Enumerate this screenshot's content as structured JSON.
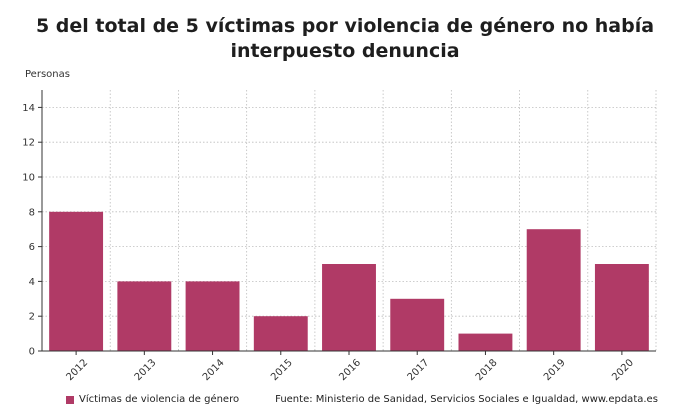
{
  "title_line1": "5 del total de 5 víctimas por violencia de género no había",
  "title_line2": "interpuesto denuncia",
  "colors": {
    "bar": "#b03a66",
    "grid": "#bdbdbd",
    "axis": "#333333"
  },
  "chart_data": {
    "type": "bar",
    "title": "5 del total de 5 víctimas por violencia de género no había interpuesto denuncia",
    "ylabel": "Personas",
    "xlabel": "",
    "categories": [
      "2012",
      "2013",
      "2014",
      "2015",
      "2016",
      "2017",
      "2018",
      "2019",
      "2020"
    ],
    "series": [
      {
        "name": "Víctimas de violencia de género",
        "values": [
          8,
          4,
          4,
          2,
          5,
          3,
          1,
          7,
          5
        ]
      }
    ],
    "ylim": [
      0,
      15
    ],
    "yticks": [
      0,
      2,
      4,
      6,
      8,
      10,
      12,
      14
    ],
    "grid": true,
    "legend_position": "bottom-left"
  },
  "legend": {
    "series_label": "Víctimas de violencia de género",
    "source": "Fuente: Ministerio de Sanidad, Servicios Sociales e Igualdad, www.epdata.es"
  }
}
